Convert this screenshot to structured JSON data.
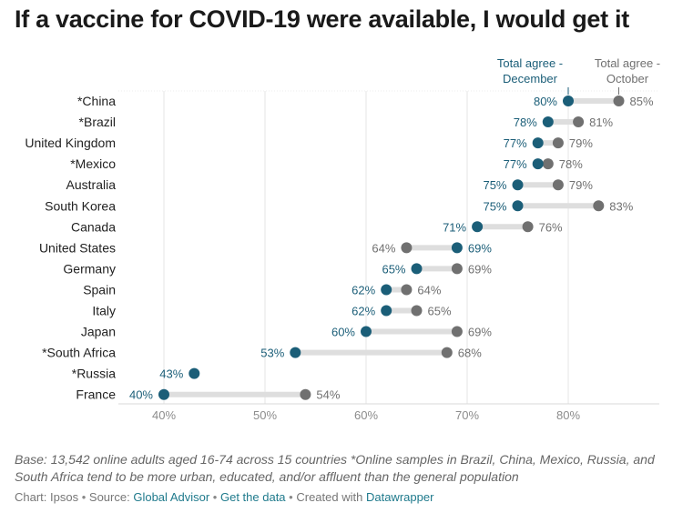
{
  "title": "If a vaccine for COVID-19 were available, I would get it",
  "colors": {
    "december": "#1b5e78",
    "october": "#707070",
    "connector": "#dedede",
    "grid": "#e6e6e6"
  },
  "chart_data": {
    "type": "dot",
    "title": "If a vaccine for COVID-19 were available, I would get it",
    "series": [
      {
        "name": "Total agree - December",
        "key": "dec"
      },
      {
        "name": "Total agree - October",
        "key": "oct"
      }
    ],
    "legend_labels": {
      "dec": [
        "Total agree -",
        "December"
      ],
      "oct": [
        "Total agree -",
        "October"
      ]
    },
    "x_ticks": [
      "40%",
      "50%",
      "60%",
      "70%",
      "80%"
    ],
    "x_tick_values": [
      40,
      50,
      60,
      70,
      80
    ],
    "xlim": [
      40,
      80
    ],
    "grid": true,
    "rows": [
      {
        "label": "*China",
        "dec": 80,
        "oct": 85,
        "dec_label": "80%",
        "oct_label": "85%"
      },
      {
        "label": "*Brazil",
        "dec": 78,
        "oct": 81,
        "dec_label": "78%",
        "oct_label": "81%"
      },
      {
        "label": "United Kingdom",
        "dec": 77,
        "oct": 79,
        "dec_label": "77%",
        "oct_label": "79%"
      },
      {
        "label": "*Mexico",
        "dec": 77,
        "oct": 78,
        "dec_label": "77%",
        "oct_label": "78%"
      },
      {
        "label": "Australia",
        "dec": 75,
        "oct": 79,
        "dec_label": "75%",
        "oct_label": "79%"
      },
      {
        "label": "South Korea",
        "dec": 75,
        "oct": 83,
        "dec_label": "75%",
        "oct_label": "83%"
      },
      {
        "label": "Canada",
        "dec": 71,
        "oct": 76,
        "dec_label": "71%",
        "oct_label": "76%"
      },
      {
        "label": "United States",
        "dec": 69,
        "oct": 64,
        "dec_label": "69%",
        "oct_label": "64%"
      },
      {
        "label": "Germany",
        "dec": 65,
        "oct": 69,
        "dec_label": "65%",
        "oct_label": "69%"
      },
      {
        "label": "Spain",
        "dec": 62,
        "oct": 64,
        "dec_label": "62%",
        "oct_label": "64%"
      },
      {
        "label": "Italy",
        "dec": 62,
        "oct": 65,
        "dec_label": "62%",
        "oct_label": "65%"
      },
      {
        "label": "Japan",
        "dec": 60,
        "oct": 69,
        "dec_label": "60%",
        "oct_label": "69%"
      },
      {
        "label": "*South Africa",
        "dec": 53,
        "oct": 68,
        "dec_label": "53%",
        "oct_label": "68%"
      },
      {
        "label": "*Russia",
        "dec": 43,
        "oct": null,
        "dec_label": "43%",
        "oct_label": ""
      },
      {
        "label": "France",
        "dec": 40,
        "oct": 54,
        "dec_label": "40%",
        "oct_label": "54%"
      }
    ]
  },
  "notes": "Base: 13,542 online adults aged 16-74 across 15 countries *Online samples in Brazil, China, Mexico, Russia, and South Africa tend to be more urban, educated, and/or affluent than the general population",
  "footer": {
    "chart_by": "Chart: Ipsos",
    "source_prefix": "Source:",
    "source_link": "Global Advisor",
    "data_link": "Get the data",
    "created_prefix": "Created with",
    "created_link": "Datawrapper",
    "separator": "•"
  }
}
